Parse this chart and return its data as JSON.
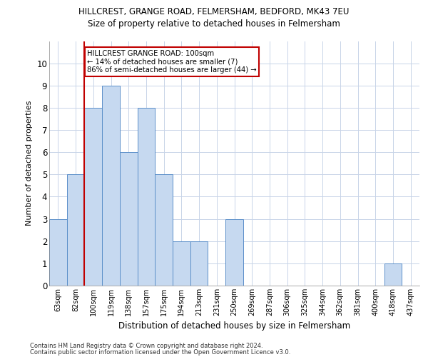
{
  "title_line1": "HILLCREST, GRANGE ROAD, FELMERSHAM, BEDFORD, MK43 7EU",
  "title_line2": "Size of property relative to detached houses in Felmersham",
  "xlabel": "Distribution of detached houses by size in Felmersham",
  "ylabel": "Number of detached properties",
  "categories": [
    "63sqm",
    "82sqm",
    "100sqm",
    "119sqm",
    "138sqm",
    "157sqm",
    "175sqm",
    "194sqm",
    "213sqm",
    "231sqm",
    "250sqm",
    "269sqm",
    "287sqm",
    "306sqm",
    "325sqm",
    "344sqm",
    "362sqm",
    "381sqm",
    "400sqm",
    "418sqm",
    "437sqm"
  ],
  "values": [
    3,
    5,
    8,
    9,
    6,
    8,
    5,
    2,
    2,
    0,
    3,
    0,
    0,
    0,
    0,
    0,
    0,
    0,
    0,
    1,
    0
  ],
  "bar_color": "#c6d9f0",
  "bar_edge_color": "#5b8fc9",
  "highlight_index": 2,
  "highlight_line_color": "#c00000",
  "annotation_text": "HILLCREST GRANGE ROAD: 100sqm\n← 14% of detached houses are smaller (7)\n86% of semi-detached houses are larger (44) →",
  "annotation_box_color": "#ffffff",
  "annotation_box_edge_color": "#c00000",
  "ylim": [
    0,
    11
  ],
  "yticks": [
    0,
    1,
    2,
    3,
    4,
    5,
    6,
    7,
    8,
    9,
    10
  ],
  "footer_line1": "Contains HM Land Registry data © Crown copyright and database right 2024.",
  "footer_line2": "Contains public sector information licensed under the Open Government Licence v3.0.",
  "background_color": "#ffffff",
  "grid_color": "#c8d4e8"
}
